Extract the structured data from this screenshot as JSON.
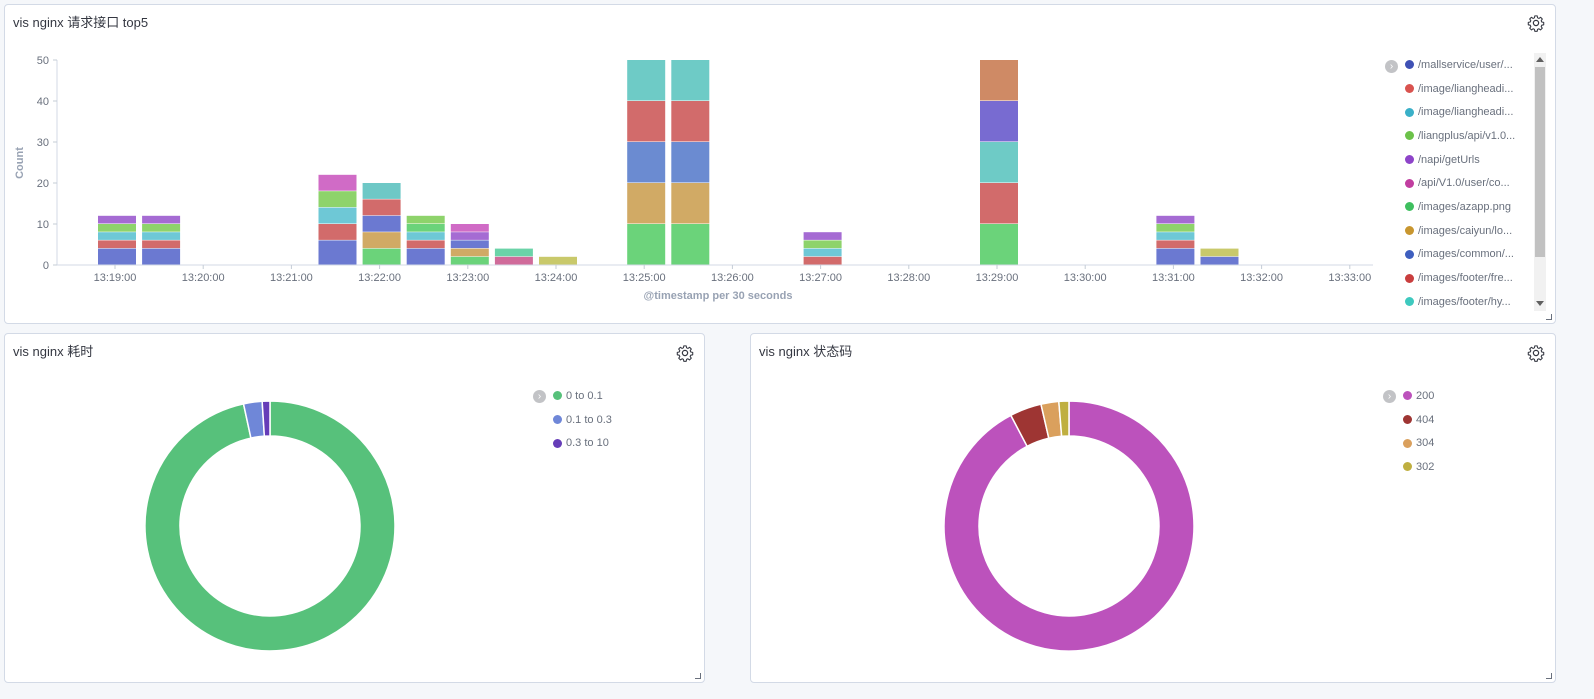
{
  "panels": {
    "top": {
      "title": "vis nginx 请求接口 top5"
    },
    "left": {
      "title": "vis nginx 耗时"
    },
    "right": {
      "title": "vis nginx 状态码"
    }
  },
  "icons": {
    "gear": "gear-icon",
    "legend_toggle": "chevron-right-icon",
    "resize": "resize-handle-icon"
  },
  "bar_legend": [
    {
      "label": "/mallservice/user/...",
      "color": "#3f51b5"
    },
    {
      "label": "/image/liangheadi...",
      "color": "#d9534f"
    },
    {
      "label": "/image/liangheadi...",
      "color": "#3ab0c8"
    },
    {
      "label": "/liangplus/api/v1.0...",
      "color": "#6cc24a"
    },
    {
      "label": "/napi/getUrls",
      "color": "#8e44c9"
    },
    {
      "label": "/api/V1.0/user/co...",
      "color": "#c13ea0"
    },
    {
      "label": "/images/azapp.png",
      "color": "#3fbf5f"
    },
    {
      "label": "/images/caiyun/lo...",
      "color": "#c8962f"
    },
    {
      "label": "/images/common/...",
      "color": "#3e5fbf"
    },
    {
      "label": "/images/footer/fre...",
      "color": "#c93e3e"
    },
    {
      "label": "/images/footer/hy...",
      "color": "#3ec9bf"
    }
  ],
  "chart_data": [
    {
      "type": "bar",
      "stacked": true,
      "xlabel": "@timestamp per 30 seconds",
      "ylabel": "Count",
      "ylim": [
        0,
        50
      ],
      "yticks": [
        0,
        10,
        20,
        30,
        40,
        50
      ],
      "xticks": [
        "13:19:00",
        "13:20:00",
        "13:21:00",
        "13:22:00",
        "13:23:00",
        "13:24:00",
        "13:25:00",
        "13:26:00",
        "13:27:00",
        "13:28:00",
        "13:29:00",
        "13:30:00",
        "13:31:00",
        "13:32:00",
        "13:33:00"
      ],
      "x_domain_minutes": [
        0,
        15
      ],
      "bars": [
        {
          "t": 0.0,
          "segments": [
            [
              4,
              "#6b79d1"
            ],
            [
              2,
              "#d26b6b"
            ],
            [
              2,
              "#6ec8d6"
            ],
            [
              2,
              "#8ed36b"
            ],
            [
              2,
              "#a56bd3"
            ]
          ]
        },
        {
          "t": 0.5,
          "segments": [
            [
              4,
              "#6b79d1"
            ],
            [
              2,
              "#d26b6b"
            ],
            [
              2,
              "#6ec8d6"
            ],
            [
              2,
              "#8ed36b"
            ],
            [
              2,
              "#a56bd3"
            ]
          ]
        },
        {
          "t": 2.5,
          "segments": [
            [
              6,
              "#6b79d1"
            ],
            [
              4,
              "#d26b6b"
            ],
            [
              4,
              "#6ec8d6"
            ],
            [
              4,
              "#8ed36b"
            ],
            [
              4,
              "#d06bc6"
            ]
          ]
        },
        {
          "t": 3.0,
          "segments": [
            [
              4,
              "#6bd37a"
            ],
            [
              4,
              "#d1aa65"
            ],
            [
              4,
              "#6b79d1"
            ],
            [
              4,
              "#d26b6b"
            ],
            [
              4,
              "#6ec8c6"
            ]
          ]
        },
        {
          "t": 3.5,
          "segments": [
            [
              4,
              "#6b79d1"
            ],
            [
              2,
              "#d26b6b"
            ],
            [
              2,
              "#6ec8d6"
            ],
            [
              2,
              "#6bd37a"
            ],
            [
              2,
              "#8ed36b"
            ]
          ]
        },
        {
          "t": 4.0,
          "segments": [
            [
              2,
              "#6bd37a"
            ],
            [
              2,
              "#d1aa65"
            ],
            [
              2,
              "#6b79d1"
            ],
            [
              2,
              "#a56bd3"
            ],
            [
              2,
              "#d06bc6"
            ]
          ]
        },
        {
          "t": 4.5,
          "segments": [
            [
              2,
              "#d06b9a"
            ],
            [
              2,
              "#6bd3a8"
            ]
          ]
        },
        {
          "t": 5.0,
          "segments": [
            [
              2,
              "#c9c96b"
            ]
          ]
        },
        {
          "t": 6.0,
          "segments": [
            [
              10,
              "#6bd37a"
            ],
            [
              10,
              "#d1aa65"
            ],
            [
              10,
              "#6b8bd1"
            ],
            [
              10,
              "#d26b6b"
            ],
            [
              10,
              "#6ecbc6"
            ]
          ]
        },
        {
          "t": 6.5,
          "segments": [
            [
              10,
              "#6bd37a"
            ],
            [
              10,
              "#d1aa65"
            ],
            [
              10,
              "#6b8bd1"
            ],
            [
              10,
              "#d26b6b"
            ],
            [
              10,
              "#6ecbc6"
            ]
          ]
        },
        {
          "t": 8.0,
          "segments": [
            [
              2,
              "#d26b6b"
            ],
            [
              2,
              "#6ec8d6"
            ],
            [
              2,
              "#8ed36b"
            ],
            [
              2,
              "#a56bd3"
            ]
          ]
        },
        {
          "t": 10.0,
          "segments": [
            [
              10,
              "#6bd37a"
            ],
            [
              10,
              "#d26b6b"
            ],
            [
              10,
              "#6ecbc6"
            ],
            [
              10,
              "#786bd1"
            ],
            [
              10,
              "#cf8a65"
            ]
          ]
        },
        {
          "t": 12.0,
          "segments": [
            [
              4,
              "#6b79d1"
            ],
            [
              2,
              "#d26b6b"
            ],
            [
              2,
              "#6ec8d6"
            ],
            [
              2,
              "#8ed36b"
            ],
            [
              2,
              "#a56bd3"
            ]
          ]
        },
        {
          "t": 12.5,
          "segments": [
            [
              2,
              "#6b79d1"
            ],
            [
              2,
              "#c9c96b"
            ]
          ]
        }
      ]
    },
    {
      "type": "pie",
      "donut": true,
      "title": "",
      "slices": [
        {
          "label": "0 to 0.1",
          "value": 96.6,
          "color": "#57c17b"
        },
        {
          "label": "0.1 to 0.3",
          "value": 2.4,
          "color": "#6f87d8"
        },
        {
          "label": "0.3 to 10",
          "value": 1.0,
          "color": "#663db8"
        }
      ]
    },
    {
      "type": "pie",
      "donut": true,
      "title": "",
      "slices": [
        {
          "label": "200",
          "value": 92.3,
          "color": "#bc52bc"
        },
        {
          "label": "404",
          "value": 4.1,
          "color": "#9e3533"
        },
        {
          "label": "304",
          "value": 2.3,
          "color": "#daa05d"
        },
        {
          "label": "302",
          "value": 1.3,
          "color": "#bfaf40"
        }
      ]
    }
  ]
}
